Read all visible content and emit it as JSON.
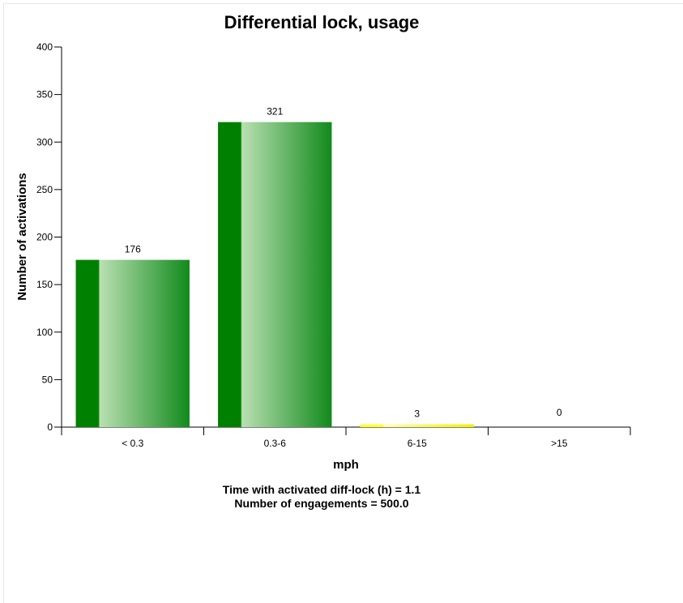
{
  "chart_data": {
    "type": "bar",
    "title": "Differential lock, usage",
    "xlabel": "mph",
    "ylabel": "Number of activations",
    "categories": [
      "< 0.3",
      "0.3-6",
      "6-15",
      ">15"
    ],
    "values": [
      176,
      321,
      3,
      0
    ],
    "data_labels": [
      "176",
      "321",
      "3",
      "0"
    ],
    "bar_colors": [
      "#008000",
      "#008000",
      "#ffff33",
      "#ffff33"
    ],
    "ylim": [
      0,
      400
    ],
    "yticks": [
      0,
      50,
      100,
      150,
      200,
      250,
      300,
      350,
      400
    ],
    "grid": false,
    "legend": "none"
  },
  "footer": {
    "line1": "Time with activated diff-lock (h) = 1.1",
    "line2": "Number of engagements = 500.0"
  }
}
